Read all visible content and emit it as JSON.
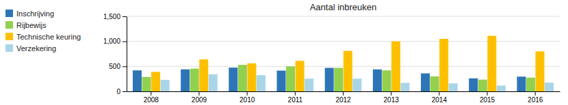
{
  "chart_data": {
    "type": "bar",
    "title": "Aantal inbreuken",
    "categories": [
      "2008",
      "2009",
      "2010",
      "2011",
      "2012",
      "2013",
      "2014",
      "2015",
      "2016"
    ],
    "series": [
      {
        "name": "Inschrijving",
        "color": "#2E75B6",
        "values": [
          420,
          440,
          475,
          415,
          470,
          440,
          360,
          260,
          295
        ]
      },
      {
        "name": "Rijbewijs",
        "color": "#92D050",
        "values": [
          290,
          455,
          530,
          500,
          470,
          420,
          300,
          235,
          275
        ]
      },
      {
        "name": "Technische keuring",
        "color": "#FFC000",
        "values": [
          390,
          640,
          560,
          610,
          810,
          1000,
          1050,
          1110,
          800
        ]
      },
      {
        "name": "Verzekering",
        "color": "#A9D5E8",
        "values": [
          230,
          340,
          325,
          255,
          255,
          170,
          160,
          115,
          175
        ]
      }
    ],
    "ylim": [
      0,
      1500
    ],
    "yticks": [
      0,
      500,
      {
        "value": 1000,
        "label": "1,000"
      },
      {
        "value": 1500,
        "label": "1,500"
      }
    ],
    "grid": true,
    "legend": "left"
  }
}
